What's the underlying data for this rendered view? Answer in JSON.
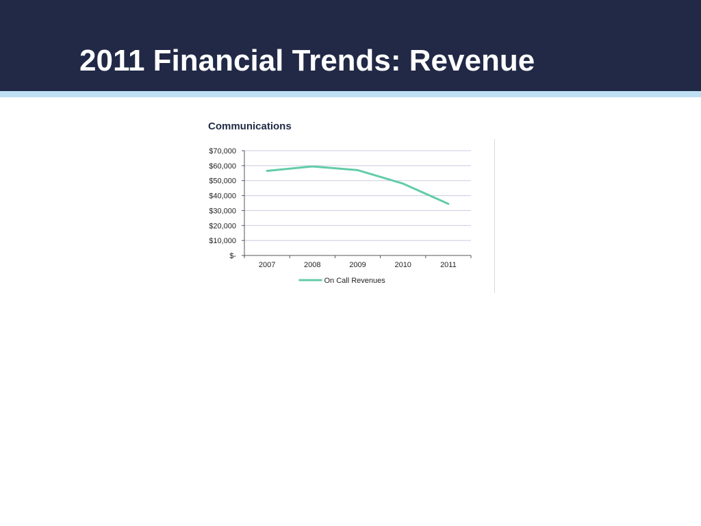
{
  "slide": {
    "title": "2011 Financial Trends: Revenue"
  },
  "colors": {
    "header_background": "#212946",
    "accent_bar": "#bfe0f3",
    "series_line": "#62cca8",
    "gridline": "#c9cbe3",
    "axis": "#555555"
  },
  "chart_data": {
    "type": "line",
    "title": "Communications",
    "xlabel": "",
    "ylabel": "",
    "categories": [
      "2007",
      "2008",
      "2009",
      "2010",
      "2011"
    ],
    "series": [
      {
        "name": "On Call Revenues",
        "values": [
          56500,
          59500,
          57000,
          48000,
          34500
        ]
      }
    ],
    "ylim": [
      0,
      70000
    ],
    "y_ticks": [
      0,
      10000,
      20000,
      30000,
      40000,
      50000,
      60000,
      70000
    ],
    "y_tick_labels": [
      "$-",
      "$10,000",
      "$20,000",
      "$30,000",
      "$40,000",
      "$50,000",
      "$60,000",
      "$70,000"
    ],
    "grid": true,
    "legend_position": "bottom"
  }
}
